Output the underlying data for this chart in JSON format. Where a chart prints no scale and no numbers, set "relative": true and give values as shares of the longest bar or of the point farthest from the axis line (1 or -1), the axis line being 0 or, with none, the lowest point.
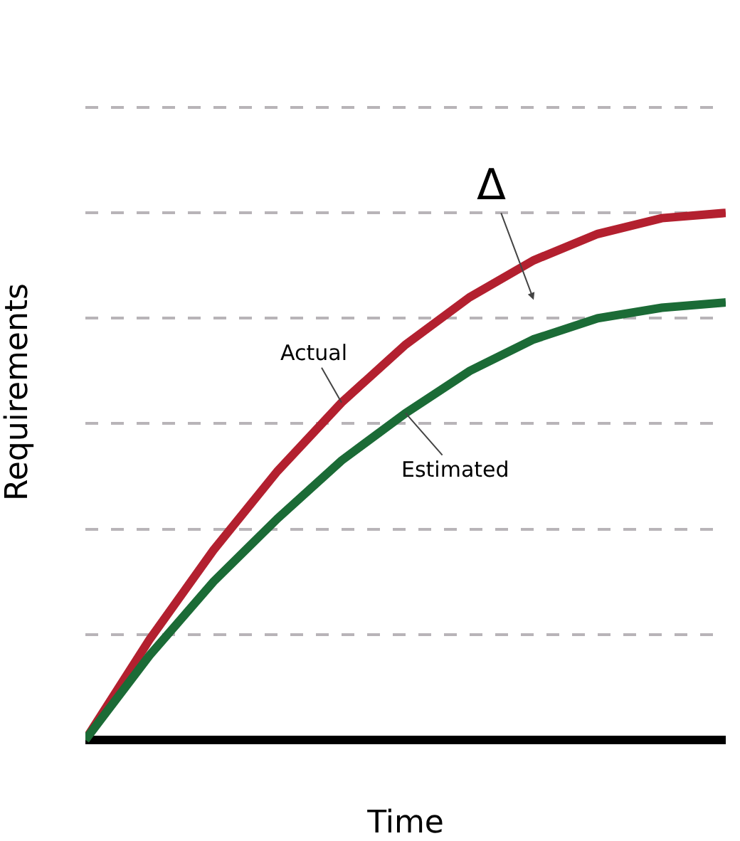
{
  "chart_data": {
    "type": "line",
    "xlabel": "Time",
    "ylabel": "Requirements",
    "relative": true,
    "categories": [
      null,
      null,
      null,
      null,
      null,
      null,
      null,
      null,
      null,
      null,
      null
    ],
    "series": [
      {
        "name": "Actual",
        "color": "#b3202f",
        "values": [
          0,
          0.19,
          0.36,
          0.51,
          0.64,
          0.75,
          0.84,
          0.91,
          0.96,
          0.99,
          1.0
        ]
      },
      {
        "name": "Estimated",
        "color": "#1b6b36",
        "values": [
          0,
          0.16,
          0.3,
          0.42,
          0.53,
          0.62,
          0.7,
          0.76,
          0.8,
          0.82,
          0.83
        ]
      }
    ],
    "annotations": [
      "Δ"
    ],
    "grid": "y",
    "legend": false,
    "marker": "none",
    "line_style": "solid"
  }
}
